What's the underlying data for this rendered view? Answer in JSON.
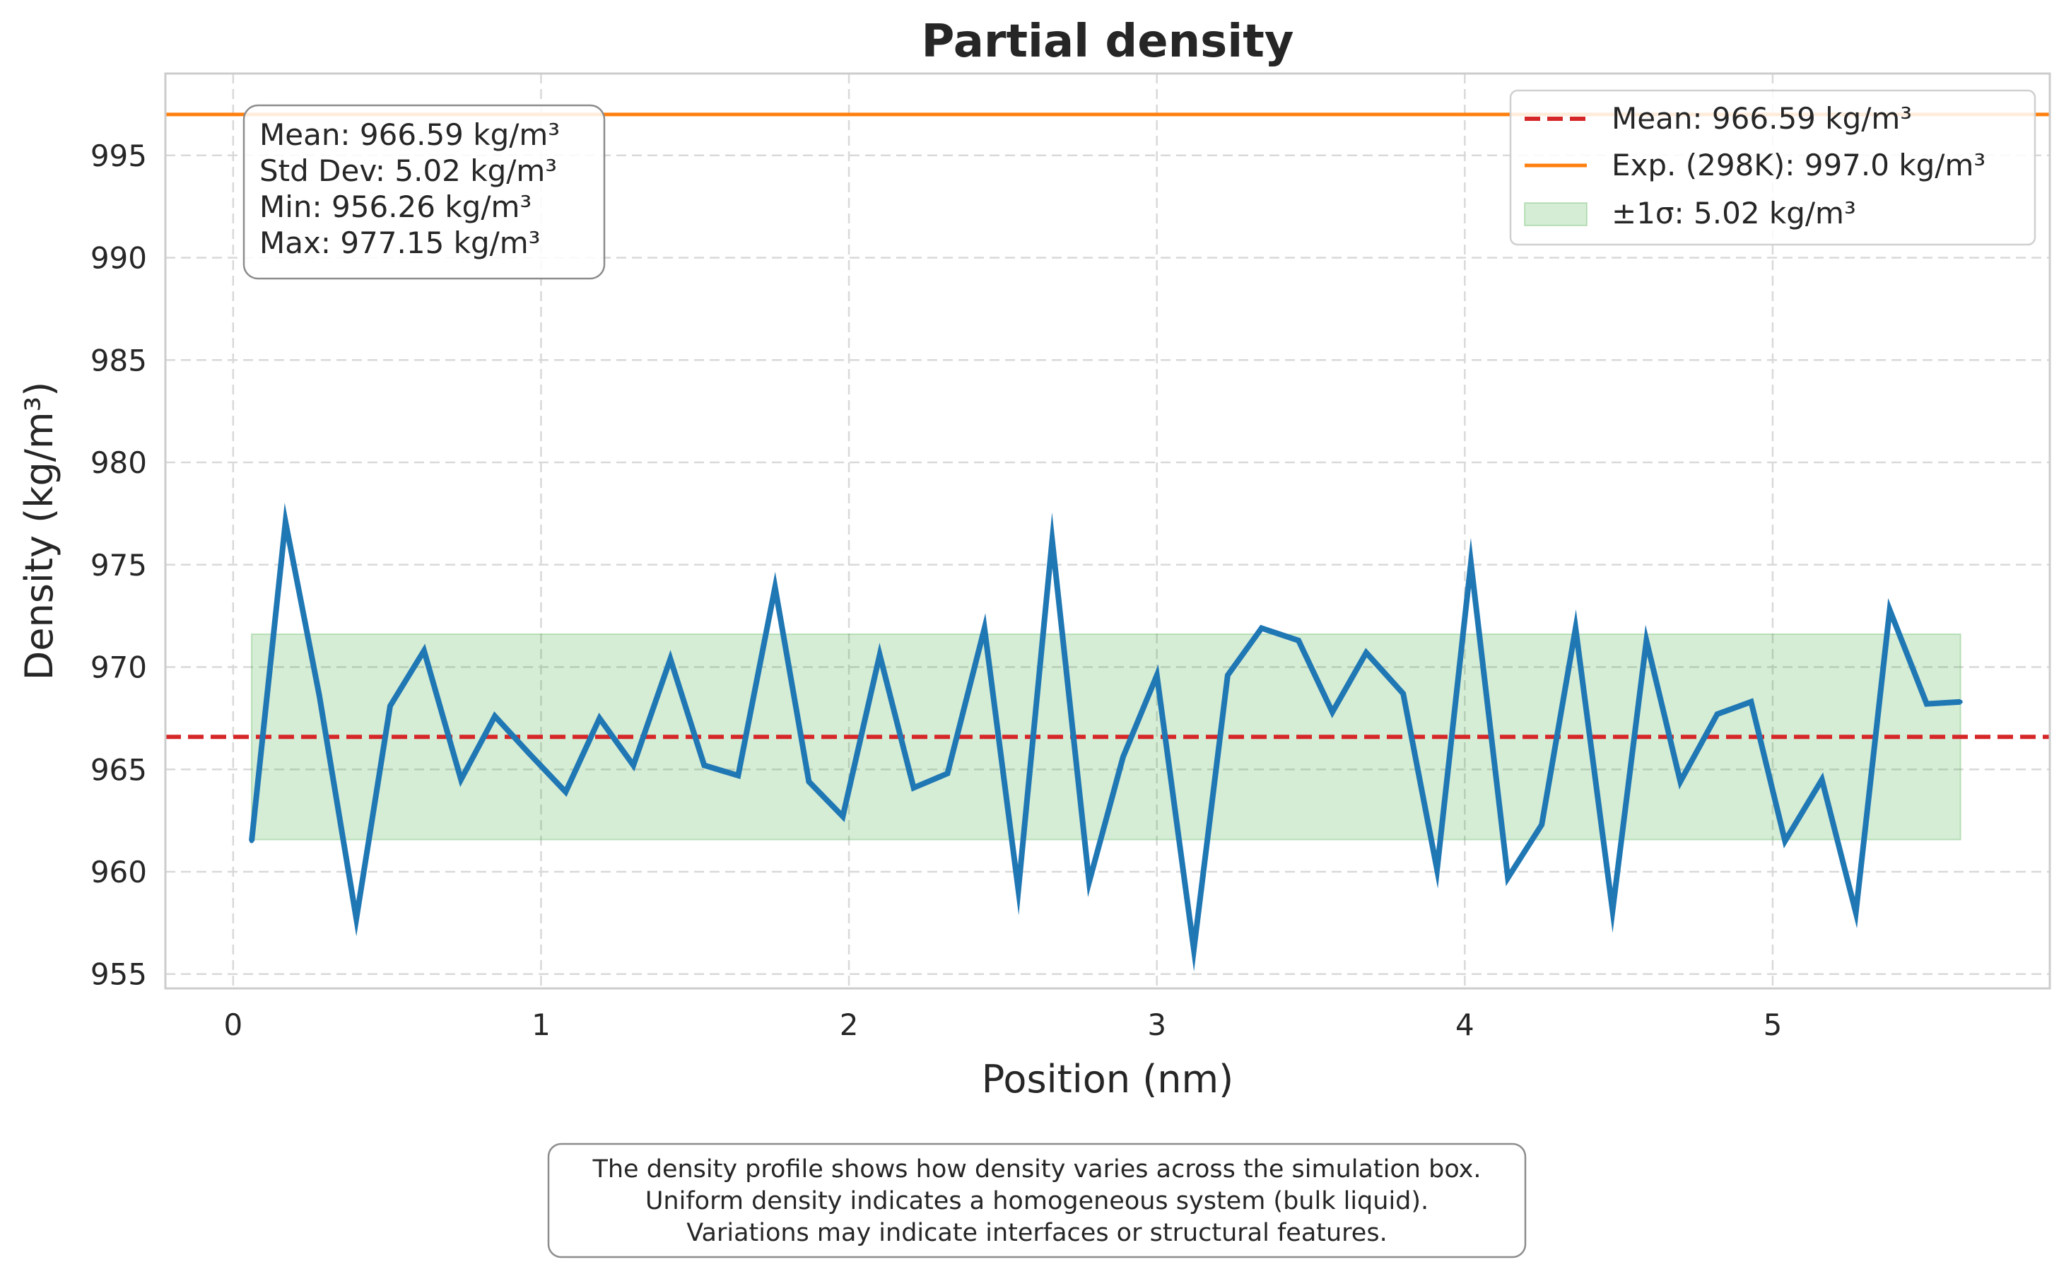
{
  "chart_data": {
    "type": "line",
    "title": "Partial density",
    "xlabel": "Position (nm)",
    "ylabel": "Density (kg/m³)",
    "xlim": [
      -0.22,
      5.9
    ],
    "ylim": [
      954.3,
      999.0
    ],
    "xticks": [
      0,
      1,
      2,
      3,
      4,
      5
    ],
    "yticks": [
      955,
      960,
      965,
      970,
      975,
      980,
      985,
      990,
      995
    ],
    "grid": true,
    "legend_position": "top-right",
    "series": [
      {
        "name": "",
        "color": "#1f77b4",
        "x": [
          0.06,
          0.17,
          0.28,
          0.4,
          0.51,
          0.62,
          0.74,
          0.85,
          0.96,
          1.08,
          1.19,
          1.3,
          1.42,
          1.53,
          1.64,
          1.76,
          1.87,
          1.98,
          2.1,
          2.21,
          2.32,
          2.44,
          2.55,
          2.66,
          2.78,
          2.89,
          3.0,
          3.12,
          3.23,
          3.34,
          3.46,
          3.57,
          3.68,
          3.8,
          3.91,
          4.02,
          4.14,
          4.25,
          4.36,
          4.48,
          4.59,
          4.7,
          4.82,
          4.93,
          5.04,
          5.16,
          5.27,
          5.38,
          5.5,
          5.61
        ],
        "values": [
          961.5,
          977.1,
          968.6,
          957.7,
          968.1,
          970.8,
          964.5,
          967.6,
          965.8,
          963.9,
          967.5,
          965.2,
          970.4,
          965.2,
          964.7,
          973.9,
          964.4,
          962.7,
          970.6,
          964.1,
          964.8,
          971.9,
          959.1,
          976.2,
          959.5,
          965.6,
          969.6,
          956.2,
          969.6,
          971.9,
          971.3,
          967.8,
          970.7,
          968.7,
          960.1,
          975.1,
          959.7,
          962.3,
          971.9,
          958.1,
          971.3,
          964.4,
          967.7,
          968.3,
          961.5,
          964.5,
          958.0,
          972.8,
          968.2,
          968.3
        ]
      }
    ],
    "mean_line": {
      "value": 966.59,
      "color": "#d62728",
      "legend": "Mean: 966.59 kg/m³"
    },
    "exp_line": {
      "value": 997.0,
      "color": "#ff7f0e",
      "legend": "Exp. (298K): 997.0 kg/m³"
    },
    "sigma_band": {
      "low": 961.57,
      "high": 971.61,
      "x_start": 0.06,
      "x_end": 5.61,
      "color": "#2ca02c",
      "legend": "±1σ: 5.02 kg/m³"
    },
    "stats_box": [
      "Mean: 966.59 kg/m³",
      "Std Dev: 5.02 kg/m³",
      "Min: 956.26 kg/m³",
      "Max: 977.15 kg/m³"
    ],
    "note": [
      "The density profile shows how density varies across the simulation box.",
      "Uniform density indicates a homogeneous system (bulk liquid).",
      "Variations may indicate interfaces or structural features."
    ]
  }
}
